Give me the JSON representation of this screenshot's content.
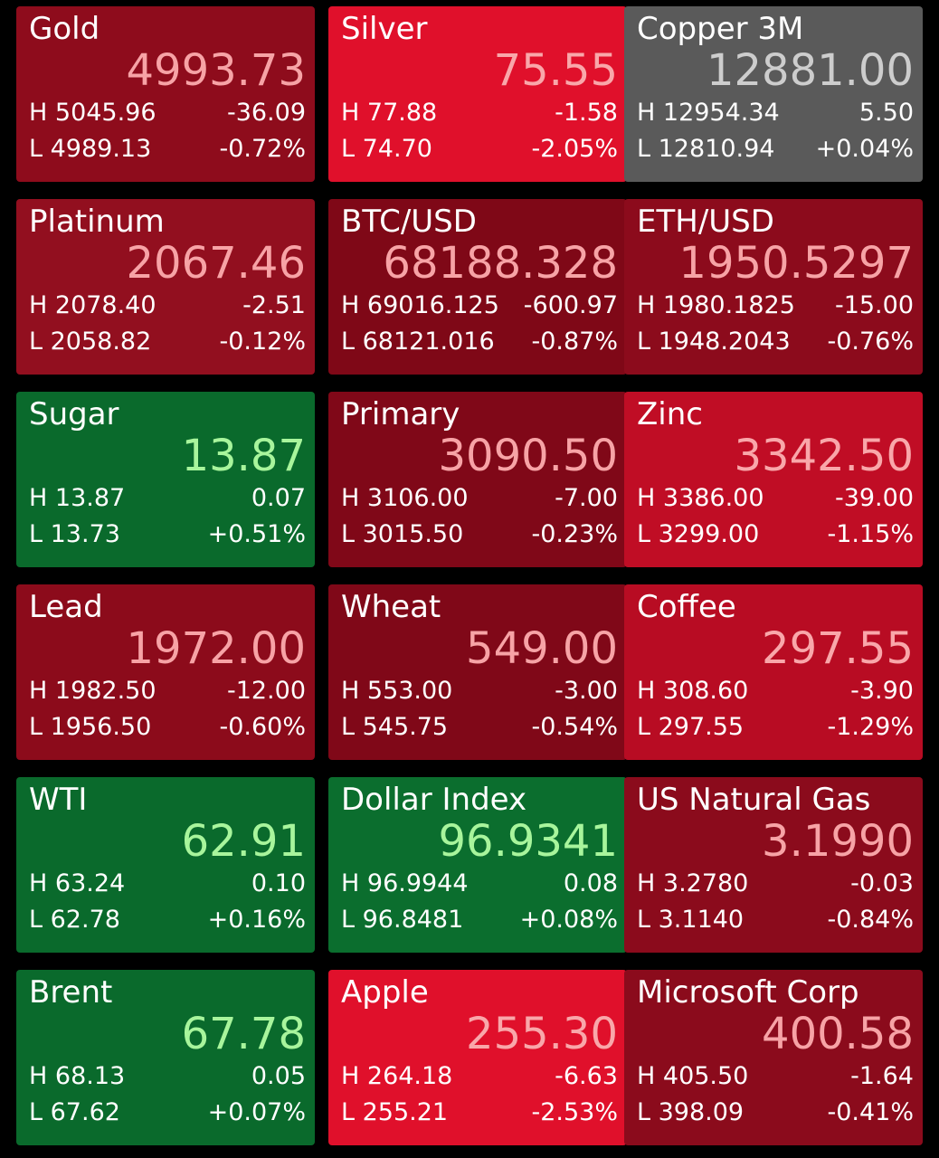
{
  "tiles": [
    {
      "name": "Gold",
      "price": "4993.73",
      "high": "H 5045.96",
      "change": "-36.09",
      "low": "L 4989.13",
      "percent": "-0.72%",
      "color": "#8e0c1c",
      "price_color": "#f7a3a6"
    },
    {
      "name": "Silver",
      "price": "75.55",
      "high": "H 77.88",
      "change": "-1.58",
      "low": "L 74.70",
      "percent": "-2.05%",
      "color": "#e0102b",
      "price_color": "#f9a7aa"
    },
    {
      "name": "Copper 3M",
      "price": "12881.00",
      "high": "H 12954.34",
      "change": "5.50",
      "low": "L 12810.94",
      "percent": "+0.04%",
      "color": "#5a5a5a",
      "price_color": "#cdcdcd"
    },
    {
      "name": "Platinum",
      "price": "2067.46",
      "high": "H 2078.40",
      "change": "-2.51",
      "low": "L 2058.82",
      "percent": "-0.12%",
      "color": "#920f1f",
      "price_color": "#f7a3a6"
    },
    {
      "name": "BTC/USD",
      "price": "68188.328",
      "high": "H 69016.125",
      "change": "-600.97",
      "low": "L 68121.016",
      "percent": "-0.87%",
      "color": "#7f0817",
      "price_color": "#f7a3a6"
    },
    {
      "name": "ETH/USD",
      "price": "1950.5297",
      "high": "H 1980.1825",
      "change": "-15.00",
      "low": "L 1948.2043",
      "percent": "-0.76%",
      "color": "#8c0b1c",
      "price_color": "#f7a3a6"
    },
    {
      "name": "Sugar",
      "price": "13.87",
      "high": "H 13.87",
      "change": "0.07",
      "low": "L 13.73",
      "percent": "+0.51%",
      "color": "#0a6a2c",
      "price_color": "#a8f59c"
    },
    {
      "name": "Primary",
      "price": "3090.50",
      "high": "H 3106.00",
      "change": "-7.00",
      "low": "L 3015.50",
      "percent": "-0.23%",
      "color": "#800818",
      "price_color": "#f7a3a6"
    },
    {
      "name": "Zinc",
      "price": "3342.50",
      "high": "H 3386.00",
      "change": "-39.00",
      "low": "L 3299.00",
      "percent": "-1.15%",
      "color": "#c00d25",
      "price_color": "#f9a7aa"
    },
    {
      "name": "Lead",
      "price": "1972.00",
      "high": "H 1982.50",
      "change": "-12.00",
      "low": "L 1956.50",
      "percent": "-0.60%",
      "color": "#8c0b1b",
      "price_color": "#f7a3a6"
    },
    {
      "name": "Wheat",
      "price": "549.00",
      "high": "H 553.00",
      "change": "-3.00",
      "low": "L 545.75",
      "percent": "-0.54%",
      "color": "#800818",
      "price_color": "#f7a3a6"
    },
    {
      "name": "Coffee",
      "price": "297.55",
      "high": "H 308.60",
      "change": "-3.90",
      "low": "L 297.55",
      "percent": "-1.29%",
      "color": "#b80c23",
      "price_color": "#f9a7aa"
    },
    {
      "name": "WTI",
      "price": "62.91",
      "high": "H 63.24",
      "change": "0.10",
      "low": "L 62.78",
      "percent": "+0.16%",
      "color": "#0a6a2c",
      "price_color": "#a8f59c"
    },
    {
      "name": "Dollar Index",
      "price": "96.9341",
      "high": "H 96.9944",
      "change": "0.08",
      "low": "L 96.8481",
      "percent": "+0.08%",
      "color": "#0b6e2e",
      "price_color": "#a8f59c"
    },
    {
      "name": "US Natural Gas",
      "price": "3.1990",
      "high": "H 3.2780",
      "change": "-0.03",
      "low": "L 3.1140",
      "percent": "-0.84%",
      "color": "#8b0b1c",
      "price_color": "#f7a3a6"
    },
    {
      "name": "Brent",
      "price": "67.78",
      "high": "H 68.13",
      "change": "0.05",
      "low": "L 67.62",
      "percent": "+0.07%",
      "color": "#0a6a2c",
      "price_color": "#a8f59c"
    },
    {
      "name": "Apple",
      "price": "255.30",
      "high": "H 264.18",
      "change": "-6.63",
      "low": "L 255.21",
      "percent": "-2.53%",
      "color": "#e0102b",
      "price_color": "#f9a7aa"
    },
    {
      "name": "Microsoft Corp",
      "price": "400.58",
      "high": "H 405.50",
      "change": "-1.64",
      "low": "L 398.09",
      "percent": "-0.41%",
      "color": "#8b0b1c",
      "price_color": "#f7a3a6"
    }
  ]
}
